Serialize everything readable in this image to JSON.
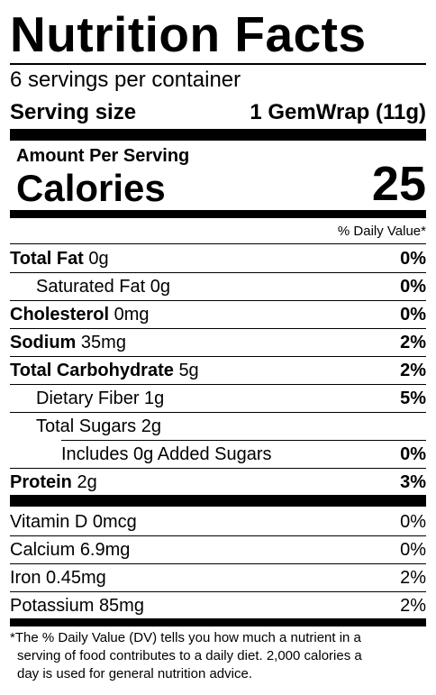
{
  "label": {
    "title": "Nutrition Facts",
    "servings_per_container": "6 servings per container",
    "serving_size_label": "Serving size",
    "serving_size_value": "1 GemWrap (11g)",
    "amount_per_serving": "Amount Per Serving",
    "calories_label": "Calories",
    "calories_value": "25",
    "daily_value_header": "% Daily Value*",
    "nutrients": [
      {
        "name": "Total Fat",
        "amount": "0g",
        "dv": "0%"
      },
      {
        "name": "Saturated Fat",
        "amount": "0g",
        "dv": "0%"
      },
      {
        "name": "Cholesterol",
        "amount": "0mg",
        "dv": "0%"
      },
      {
        "name": "Sodium",
        "amount": "35mg",
        "dv": "2%"
      },
      {
        "name": "Total Carbohydrate",
        "amount": "5g",
        "dv": "2%"
      },
      {
        "name": "Dietary Fiber",
        "amount": "1g",
        "dv": "5%"
      },
      {
        "name": "Total Sugars",
        "amount": "2g",
        "dv": ""
      },
      {
        "name": "Includes 0g Added Sugars",
        "amount": "",
        "dv": "0%"
      },
      {
        "name": "Protein",
        "amount": "2g",
        "dv": "3%"
      }
    ],
    "vitamins": [
      {
        "name": "Vitamin D",
        "amount": "0mcg",
        "dv": "0%"
      },
      {
        "name": "Calcium",
        "amount": "6.9mg",
        "dv": "0%"
      },
      {
        "name": "Iron",
        "amount": "0.45mg",
        "dv": "2%"
      },
      {
        "name": "Potassium",
        "amount": "85mg",
        "dv": "2%"
      }
    ],
    "footnote_lines": [
      "*The % Daily Value (DV) tells you how much a nutrient in a",
      "serving of food contributes to a daily diet. 2,000 calories a",
      "day is used for general nutrition advice."
    ]
  }
}
